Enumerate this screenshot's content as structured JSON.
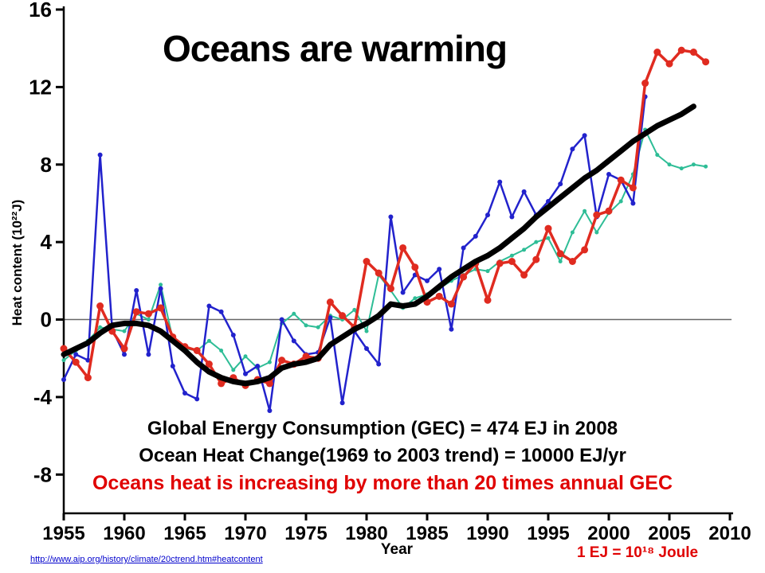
{
  "slide": {
    "title": "Oceans are warming",
    "annotations": {
      "line1": "Global Energy Consumption (GEC) = 474 EJ in 2008",
      "line2": "Ocean Heat Change(1969 to 2003 trend) = 10000 EJ/yr",
      "line3": "Oceans heat is increasing by more than 20 times annual GEC"
    },
    "source_link": "http://www.aip.org/history/climate/20ctrend.htm#heatcontent",
    "footnote": "1 EJ = 10¹⁸ Joule",
    "colors": {
      "annotation_red": "#e00000",
      "link_blue": "#0000cc"
    }
  },
  "chart_data": {
    "type": "line",
    "title": "Oceans are warming",
    "xlabel": "Year",
    "ylabel": "Heat content (10²²J)",
    "xlim": [
      1955,
      2010
    ],
    "ylim": [
      -10,
      16
    ],
    "yticks": [
      16,
      12,
      8,
      4,
      0,
      -4,
      -8
    ],
    "xticks": [
      1955,
      1960,
      1965,
      1970,
      1975,
      1980,
      1985,
      1990,
      1995,
      2000,
      2005,
      2010
    ],
    "grid": false,
    "zero_line": true,
    "legend": "none",
    "series": [
      {
        "name": "teal-analysis",
        "color": "#2ebd96",
        "line_width": 2,
        "marker_radius": 2.5,
        "x_start": 1955,
        "values": [
          -2.1,
          -1.6,
          -1.1,
          -0.4,
          -0.5,
          -0.6,
          0.3,
          0.0,
          1.8,
          -1.0,
          -1.5,
          -1.6,
          -1.1,
          -1.6,
          -2.6,
          -1.9,
          -2.5,
          -2.2,
          -0.2,
          0.3,
          -0.3,
          -0.4,
          0.2,
          0.0,
          0.5,
          -0.6,
          2.3,
          1.5,
          0.6,
          1.1,
          1.3,
          1.6,
          2.0,
          2.3,
          2.6,
          2.5,
          3.0,
          3.3,
          3.6,
          4.0,
          4.2,
          3.0,
          4.5,
          5.6,
          4.5,
          5.5,
          6.1,
          7.5,
          9.8,
          8.5,
          8.0,
          7.8,
          8.0,
          7.9
        ]
      },
      {
        "name": "blue-analysis",
        "color": "#2222cc",
        "line_width": 2.5,
        "marker_radius": 3,
        "x_start": 1955,
        "values": [
          -3.1,
          -1.8,
          -2.1,
          8.5,
          -0.5,
          -1.8,
          1.5,
          -1.8,
          1.6,
          -2.4,
          -3.8,
          -4.1,
          0.7,
          0.4,
          -0.8,
          -2.8,
          -2.4,
          -4.7,
          0.0,
          -1.1,
          -1.8,
          -1.7,
          0.1,
          -4.3,
          -0.6,
          -1.5,
          -2.3,
          5.3,
          1.4,
          2.3,
          2.0,
          2.6,
          -0.5,
          3.7,
          4.3,
          5.4,
          7.1,
          5.3,
          6.6,
          5.4,
          6.1,
          7.0,
          8.8,
          9.5,
          5.3,
          7.5,
          7.2,
          6.0,
          11.5
        ]
      },
      {
        "name": "red-analysis",
        "color": "#e02b20",
        "line_width": 3.5,
        "marker_radius": 4.5,
        "x_start": 1955,
        "values": [
          -1.5,
          -2.2,
          -3.0,
          0.7,
          -0.6,
          -1.5,
          0.4,
          0.3,
          0.6,
          -0.9,
          -1.4,
          -1.6,
          -2.3,
          -3.3,
          -3.0,
          -3.4,
          -3.1,
          -3.3,
          -2.1,
          -2.3,
          -1.9,
          -2.0,
          0.9,
          0.2,
          -0.4,
          3.0,
          2.4,
          1.6,
          3.7,
          2.7,
          0.9,
          1.2,
          0.8,
          2.2,
          2.9,
          1.0,
          2.9,
          3.0,
          2.3,
          3.1,
          4.7,
          3.4,
          3.0,
          3.6,
          5.4,
          5.6,
          7.2,
          6.8,
          12.2,
          13.8,
          13.2,
          13.9,
          13.8,
          13.3
        ]
      },
      {
        "name": "black-smoothed-trend",
        "color": "#000000",
        "line_width": 7,
        "marker_radius": 0,
        "x_start": 1955,
        "values": [
          -1.8,
          -1.5,
          -1.2,
          -0.7,
          -0.3,
          -0.2,
          -0.2,
          -0.3,
          -0.6,
          -1.1,
          -1.6,
          -2.2,
          -2.7,
          -3.0,
          -3.2,
          -3.3,
          -3.2,
          -3.0,
          -2.5,
          -2.3,
          -2.2,
          -2.0,
          -1.3,
          -0.9,
          -0.5,
          -0.2,
          0.2,
          0.8,
          0.7,
          0.8,
          1.2,
          1.7,
          2.2,
          2.6,
          3.0,
          3.3,
          3.7,
          4.2,
          4.7,
          5.3,
          5.8,
          6.3,
          6.8,
          7.3,
          7.7,
          8.2,
          8.7,
          9.2,
          9.6,
          10.0,
          10.3,
          10.6,
          11.0
        ]
      }
    ]
  }
}
